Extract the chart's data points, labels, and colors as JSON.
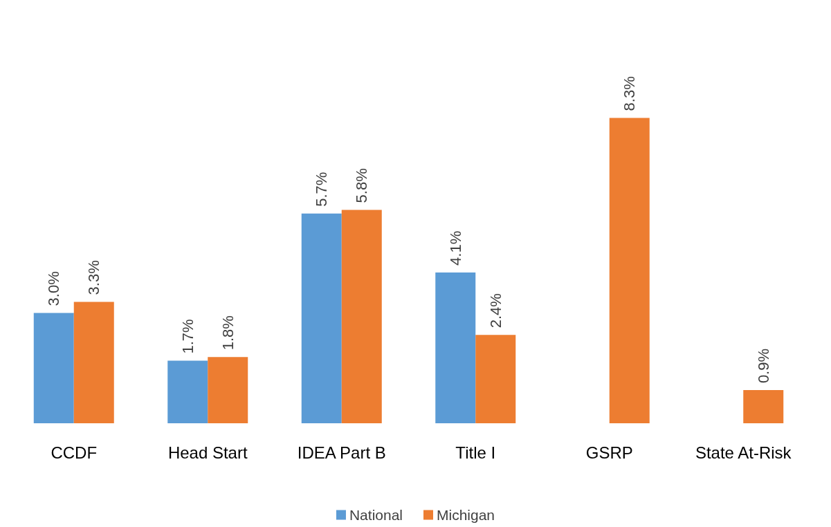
{
  "chart_data": {
    "type": "bar",
    "categories": [
      "CCDF",
      "Head Start",
      "IDEA Part B",
      "Title I",
      "GSRP",
      "State At-Risk"
    ],
    "series": [
      {
        "name": "National",
        "color": "#5b9bd5",
        "values": [
          3.0,
          1.7,
          5.7,
          4.1,
          null,
          null
        ],
        "value_labels": [
          "3.0%",
          "1.7%",
          "5.7%",
          "4.1%",
          null,
          null
        ]
      },
      {
        "name": "Michigan",
        "color": "#ed7d31",
        "values": [
          3.3,
          1.8,
          5.8,
          2.4,
          8.3,
          0.9
        ],
        "value_labels": [
          "3.3%",
          "1.8%",
          "5.8%",
          "2.4%",
          "8.3%",
          "0.9%"
        ]
      }
    ],
    "legend": "bottom"
  }
}
